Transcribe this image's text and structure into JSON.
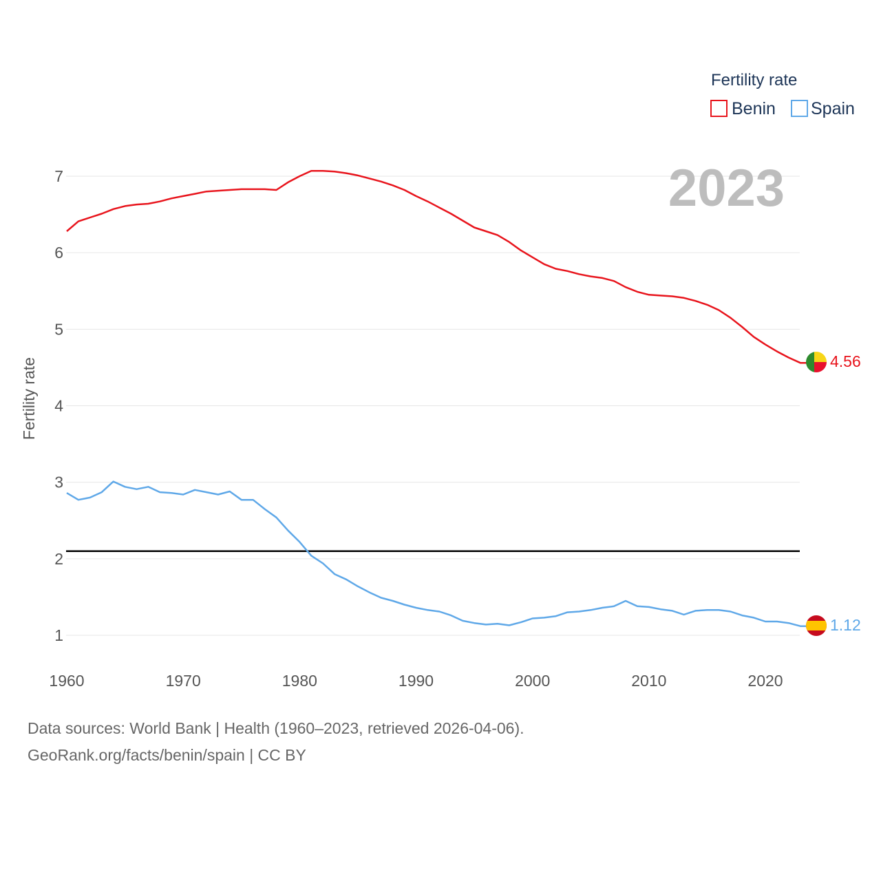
{
  "chart_data": {
    "type": "line",
    "title": "Fertility rate",
    "year_label": "2023",
    "xlabel": "",
    "ylabel": "Fertility rate",
    "xlim": [
      1960,
      2023
    ],
    "ylim": [
      0.6,
      7.2
    ],
    "x_ticks": [
      1960,
      1970,
      1980,
      1990,
      2000,
      2010,
      2020
    ],
    "y_ticks": [
      1,
      2,
      3,
      4,
      5,
      6,
      7
    ],
    "reference_line": {
      "value": 2.1,
      "color": "#000000"
    },
    "x": [
      1960,
      1961,
      1962,
      1963,
      1964,
      1965,
      1966,
      1967,
      1968,
      1969,
      1970,
      1971,
      1972,
      1973,
      1974,
      1975,
      1976,
      1977,
      1978,
      1979,
      1980,
      1981,
      1982,
      1983,
      1984,
      1985,
      1986,
      1987,
      1988,
      1989,
      1990,
      1991,
      1992,
      1993,
      1994,
      1995,
      1996,
      1997,
      1998,
      1999,
      2000,
      2001,
      2002,
      2003,
      2004,
      2005,
      2006,
      2007,
      2008,
      2009,
      2010,
      2011,
      2012,
      2013,
      2014,
      2015,
      2016,
      2017,
      2018,
      2019,
      2020,
      2021,
      2022,
      2023
    ],
    "series": [
      {
        "name": "Benin",
        "color": "#e8141c",
        "flag": "benin-flag",
        "end_label": "4.56",
        "values": [
          6.28,
          6.41,
          6.46,
          6.51,
          6.57,
          6.61,
          6.63,
          6.64,
          6.67,
          6.71,
          6.74,
          6.77,
          6.8,
          6.81,
          6.82,
          6.83,
          6.83,
          6.83,
          6.82,
          6.92,
          7.0,
          7.07,
          7.07,
          7.06,
          7.04,
          7.01,
          6.97,
          6.93,
          6.88,
          6.82,
          6.74,
          6.67,
          6.59,
          6.51,
          6.42,
          6.33,
          6.28,
          6.23,
          6.14,
          6.03,
          5.94,
          5.85,
          5.79,
          5.76,
          5.72,
          5.69,
          5.67,
          5.63,
          5.55,
          5.49,
          5.45,
          5.44,
          5.43,
          5.41,
          5.37,
          5.32,
          5.25,
          5.15,
          5.03,
          4.9,
          4.8,
          4.71,
          4.63,
          4.56
        ]
      },
      {
        "name": "Spain",
        "color": "#5fa8e8",
        "flag": "spain-flag",
        "end_label": "1.12",
        "values": [
          2.86,
          2.77,
          2.8,
          2.87,
          3.01,
          2.94,
          2.91,
          2.94,
          2.87,
          2.86,
          2.84,
          2.9,
          2.87,
          2.84,
          2.88,
          2.77,
          2.77,
          2.65,
          2.54,
          2.37,
          2.22,
          2.04,
          1.94,
          1.8,
          1.73,
          1.64,
          1.56,
          1.49,
          1.45,
          1.4,
          1.36,
          1.33,
          1.31,
          1.26,
          1.19,
          1.16,
          1.14,
          1.15,
          1.13,
          1.17,
          1.22,
          1.23,
          1.25,
          1.3,
          1.31,
          1.33,
          1.36,
          1.38,
          1.45,
          1.38,
          1.37,
          1.34,
          1.32,
          1.27,
          1.32,
          1.33,
          1.33,
          1.31,
          1.26,
          1.23,
          1.18,
          1.18,
          1.16,
          1.12
        ]
      }
    ]
  },
  "footer": {
    "source_line": "Data sources: World Bank | Health (1960–2023, retrieved 2026-04-06).",
    "url_line": "GeoRank.org/facts/benin/spain | CC BY"
  }
}
